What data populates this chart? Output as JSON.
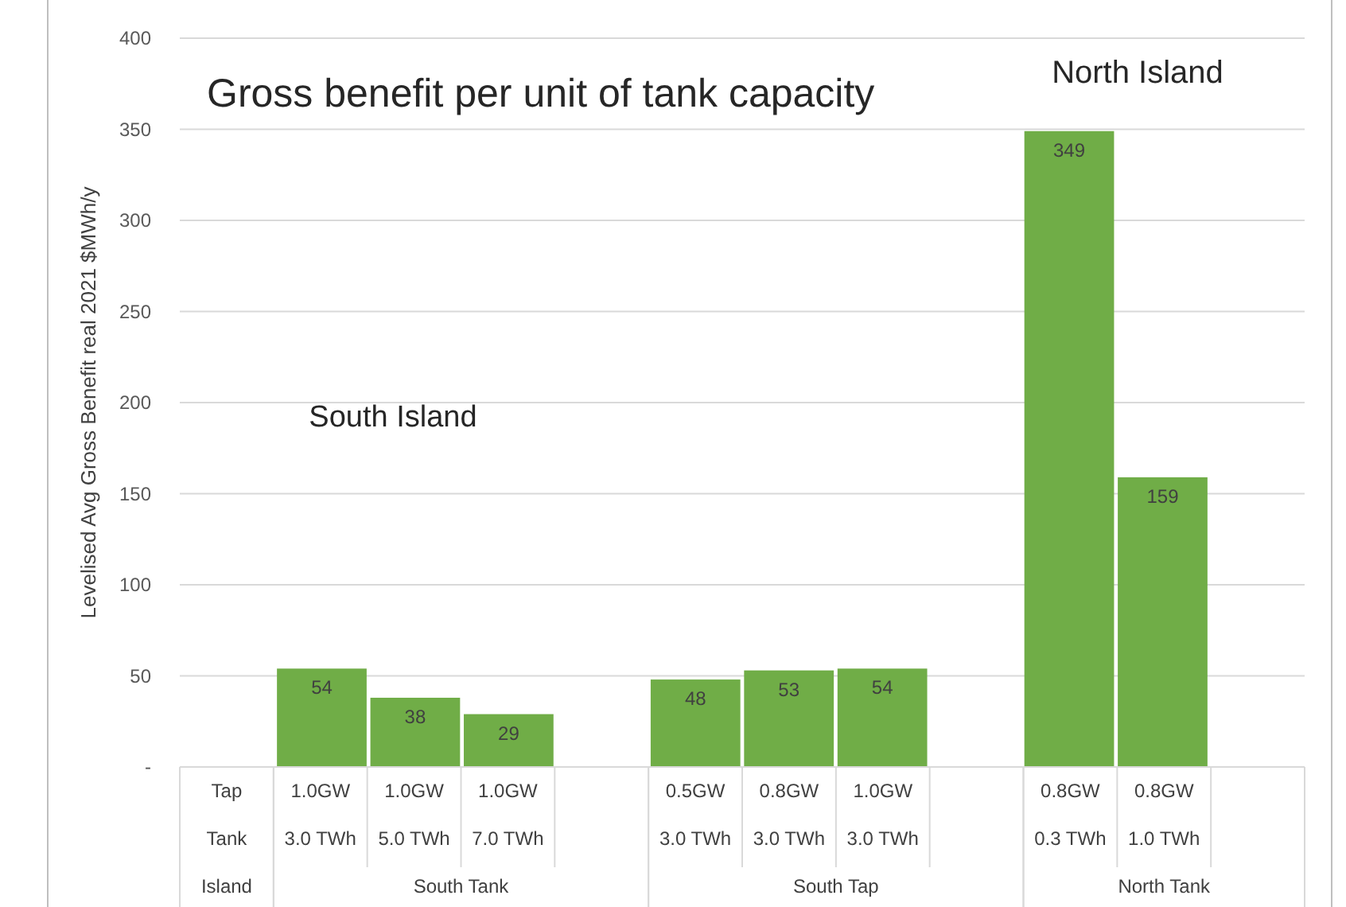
{
  "chart_data": {
    "type": "bar",
    "title": "Gross benefit per unit of tank capacity",
    "ylabel": "Levelised Avg Gross Benefit real 2021 $MWh/y",
    "categories": [
      null,
      "1.0GW\n3.0 TWh",
      "1.0GW\n5.0 TWh",
      "1.0GW\n7.0 TWh",
      null,
      "0.5GW\n3.0 TWh",
      "0.8GW\n3.0 TWh",
      "1.0GW\n3.0 TWh",
      null,
      "0.8GW\n0.3 TWh",
      "0.8GW\n1.0 TWh",
      null
    ],
    "values": [
      null,
      54,
      38,
      29,
      null,
      48,
      53,
      54,
      null,
      349,
      159,
      null
    ],
    "color": "#70ad47",
    "data_labels": true,
    "ylim": [
      0,
      400
    ],
    "yticks": [
      {
        "value": 0,
        "label": "-"
      },
      50,
      100,
      150,
      200,
      250,
      300,
      350,
      400
    ],
    "grid": "y",
    "annotations": [
      "Tap",
      "Tank",
      "Island",
      "South Tank",
      "South Tap",
      "North Tank",
      "South Island",
      "North Island"
    ]
  }
}
